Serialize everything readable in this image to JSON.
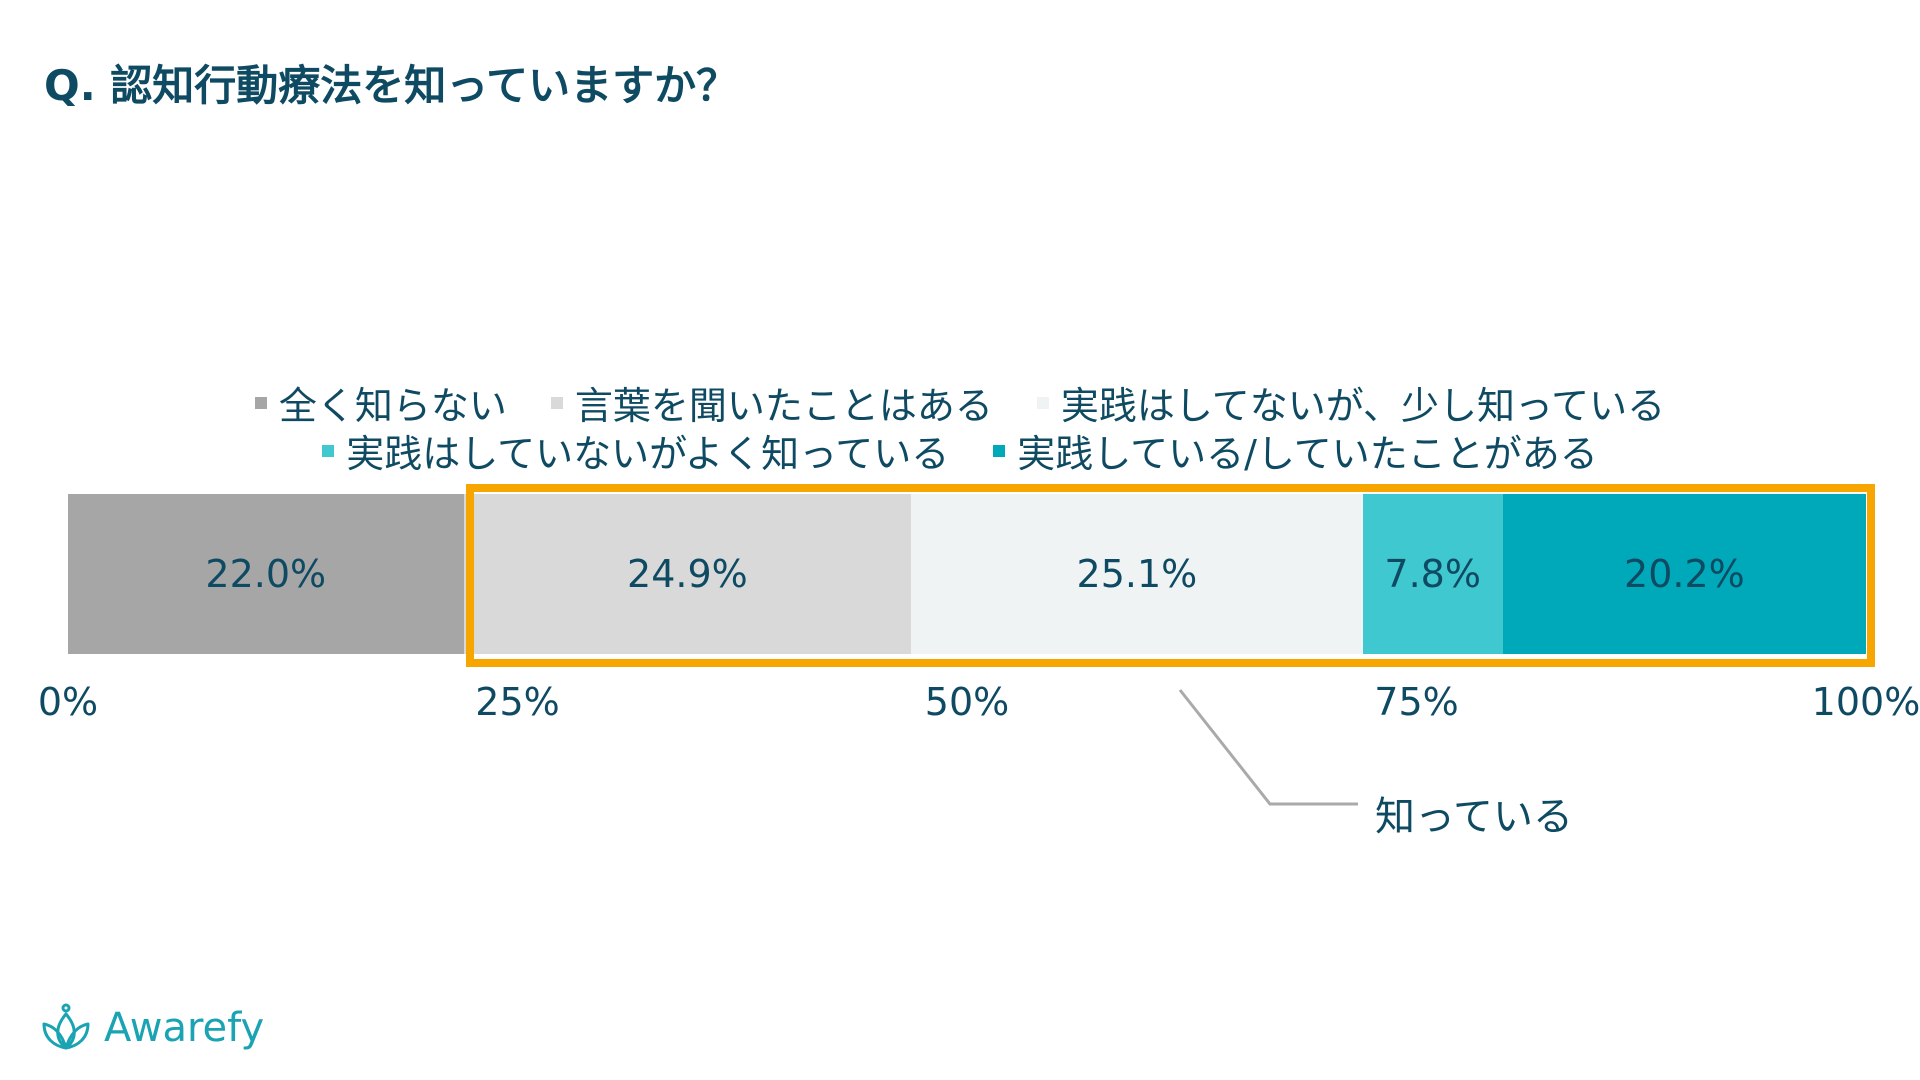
{
  "title": "Q. 認知行動療法を知っていますか？",
  "legend": [
    {
      "label": "全く知らない",
      "color": "#a6a6a6"
    },
    {
      "label": "言葉を聞いたことはある",
      "color": "#d9d9d9"
    },
    {
      "label": "実践はしてないが、少し知っている",
      "color": "#f0f3f3"
    },
    {
      "label": "実践はしていないがよく知っている",
      "color": "#3fc8cf"
    },
    {
      "label": "実践している/していたことがある",
      "color": "#00a9b9"
    }
  ],
  "chart_data": {
    "type": "bar",
    "orientation": "horizontal-stacked-100",
    "title": "Q. 認知行動療法を知っていますか？",
    "series": [
      {
        "name": "全く知らない",
        "value": 22.0,
        "label": "22.0%",
        "color": "#a6a6a6"
      },
      {
        "name": "言葉を聞いたことはある",
        "value": 24.9,
        "label": "24.9%",
        "color": "#d9d9d9"
      },
      {
        "name": "実践はしてないが、少し知っている",
        "value": 25.1,
        "label": "25.1%",
        "color": "#f0f3f3"
      },
      {
        "name": "実践はしていないがよく知っている",
        "value": 7.8,
        "label": "7.8%",
        "color": "#3fc8cf"
      },
      {
        "name": "実践している/していたことがある",
        "value": 20.2,
        "label": "20.2%",
        "color": "#00a9b9"
      }
    ],
    "x_ticks": [
      "0%",
      "25%",
      "50%",
      "75%",
      "100%"
    ],
    "xlim": [
      0,
      100
    ],
    "grid": false,
    "legend_position": "top-center"
  },
  "annotation": {
    "label": "知っている",
    "range": [
      22.0,
      100
    ],
    "color": "#f7a600"
  },
  "logo": {
    "text": "Awarefy",
    "color": "#1aa3b3"
  }
}
